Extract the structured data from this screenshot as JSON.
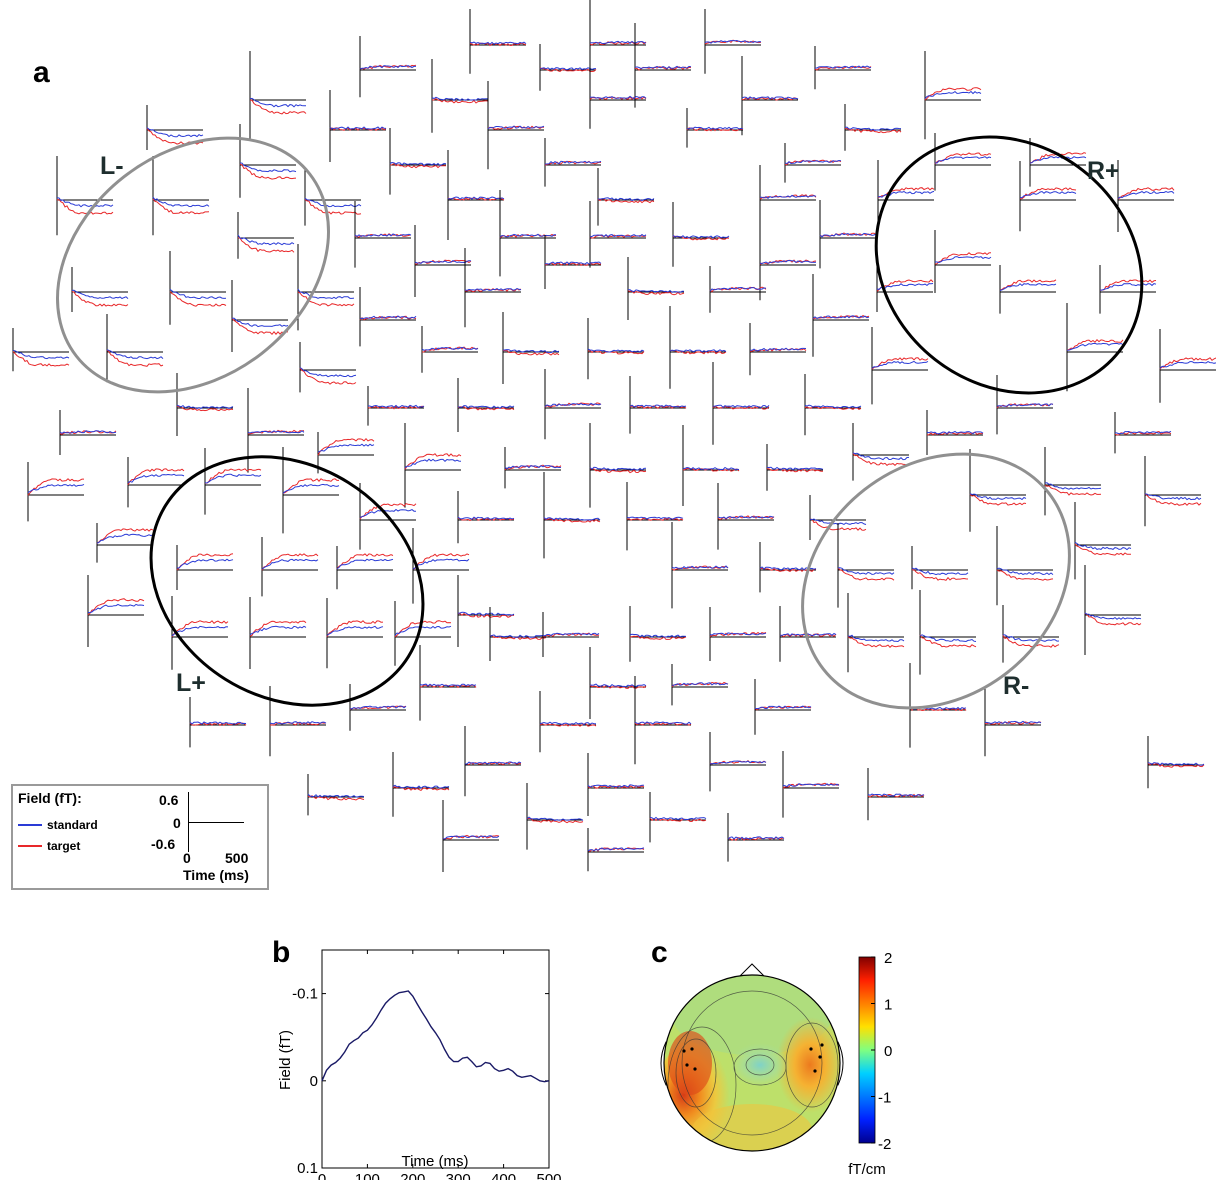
{
  "panels": {
    "a": "a",
    "b": "b",
    "c": "c"
  },
  "regions": {
    "l_minus": "L-",
    "r_plus": "R+",
    "l_plus": "L+",
    "r_minus": "R-"
  },
  "colors": {
    "standard": "#2a3bd6",
    "target": "#e8282a",
    "gray_ellipse": "#909090",
    "black_ellipse": "#000000"
  },
  "legend": {
    "title": "Field (fT):",
    "standard_label": "standard",
    "target_label": "target",
    "y_top": "0.6",
    "y_zero": "0",
    "y_bottom": "-0.6",
    "x_start": "0",
    "x_end": "500",
    "x_label": "Time (ms)"
  },
  "chart_data": {
    "type": "line",
    "panel": "b",
    "xlabel": "Time (ms)",
    "ylabel": "Field (fT)",
    "xlim": [
      0,
      500
    ],
    "ylim": [
      0.1,
      -0.15
    ],
    "y_inverted": true,
    "x_ticks": [
      "0",
      "100",
      "200",
      "300",
      "400",
      "500"
    ],
    "y_ticks": [
      "-0.1",
      "0",
      "0.1"
    ],
    "series": [
      {
        "color": "#1a1a66",
        "x": [
          0,
          10,
          20,
          30,
          40,
          50,
          60,
          70,
          80,
          90,
          100,
          110,
          120,
          130,
          140,
          150,
          160,
          170,
          180,
          190,
          200,
          210,
          220,
          230,
          240,
          250,
          260,
          270,
          280,
          290,
          300,
          310,
          320,
          330,
          340,
          350,
          360,
          370,
          380,
          390,
          400,
          410,
          420,
          430,
          440,
          450,
          460,
          470,
          480,
          490,
          500
        ],
        "y": [
          0.0,
          -0.012,
          -0.018,
          -0.021,
          -0.026,
          -0.033,
          -0.042,
          -0.046,
          -0.049,
          -0.055,
          -0.058,
          -0.064,
          -0.072,
          -0.081,
          -0.089,
          -0.094,
          -0.098,
          -0.101,
          -0.102,
          -0.103,
          -0.097,
          -0.088,
          -0.079,
          -0.071,
          -0.062,
          -0.055,
          -0.047,
          -0.036,
          -0.027,
          -0.022,
          -0.022,
          -0.026,
          -0.027,
          -0.022,
          -0.016,
          -0.017,
          -0.021,
          -0.02,
          -0.014,
          -0.011,
          -0.012,
          -0.014,
          -0.011,
          -0.006,
          -0.004,
          -0.005,
          -0.006,
          -0.003,
          0.0,
          0.001,
          0.0
        ]
      }
    ]
  },
  "topomap": {
    "colorbar_ticks": [
      "2",
      "1",
      "0",
      "-1",
      "-2"
    ],
    "colorbar_unit": "fT/cm"
  }
}
